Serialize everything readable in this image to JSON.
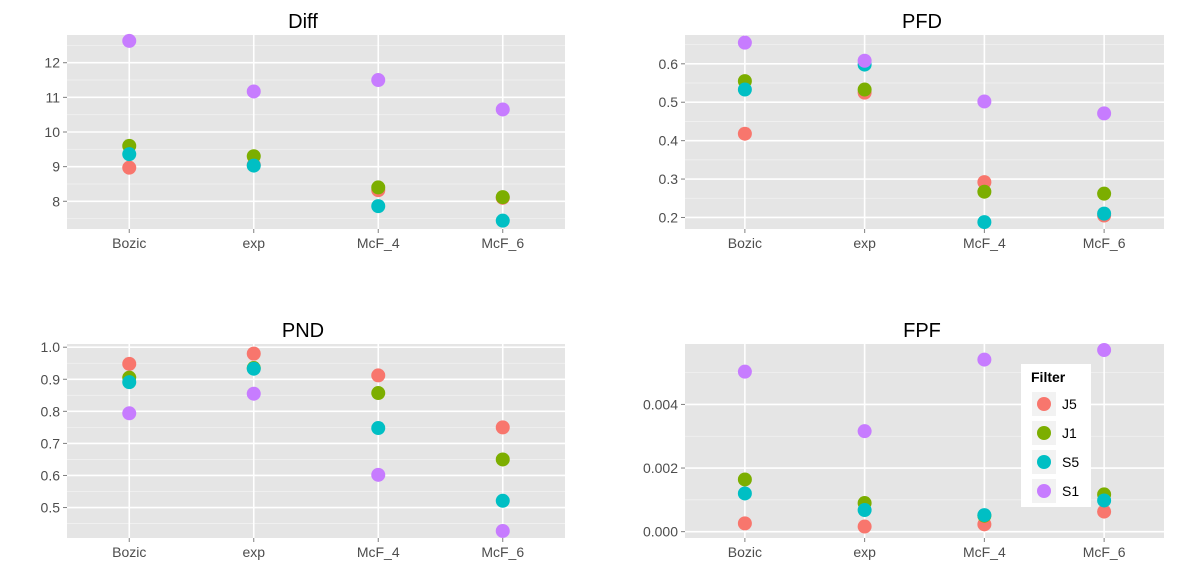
{
  "chart_data": [
    {
      "type": "scatter",
      "title": "Diff",
      "categories": [
        "Bozic",
        "exp",
        "McF_4",
        "McF_6"
      ],
      "ylim": [
        7.2,
        12.8
      ],
      "yticks": [
        8,
        9,
        10,
        11,
        12
      ],
      "ytick_labels": [
        "8",
        "9",
        "10",
        "11",
        "12"
      ],
      "grid": true,
      "series": [
        {
          "name": "J5",
          "values": [
            8.97,
            9.05,
            8.32,
            8.1
          ]
        },
        {
          "name": "J1",
          "values": [
            9.6,
            9.3,
            8.4,
            8.12
          ]
        },
        {
          "name": "S5",
          "values": [
            9.36,
            9.03,
            7.86,
            7.44
          ]
        },
        {
          "name": "S1",
          "values": [
            12.63,
            11.17,
            11.5,
            10.65
          ]
        }
      ]
    },
    {
      "type": "scatter",
      "title": "PFD",
      "categories": [
        "Bozic",
        "exp",
        "McF_4",
        "McF_6"
      ],
      "ylim": [
        0.17,
        0.675
      ],
      "yticks": [
        0.2,
        0.3,
        0.4,
        0.5,
        0.6
      ],
      "ytick_labels": [
        "0.2",
        "0.3",
        "0.4",
        "0.5",
        "0.6"
      ],
      "grid": true,
      "series": [
        {
          "name": "J5",
          "values": [
            0.418,
            0.525,
            0.292,
            0.205
          ]
        },
        {
          "name": "J1",
          "values": [
            0.555,
            0.533,
            0.267,
            0.262
          ]
        },
        {
          "name": "S5",
          "values": [
            0.533,
            0.598,
            0.188,
            0.21
          ]
        },
        {
          "name": "S1",
          "values": [
            0.655,
            0.608,
            0.502,
            0.471
          ]
        }
      ]
    },
    {
      "type": "scatter",
      "title": "PND",
      "categories": [
        "Bozic",
        "exp",
        "McF_4",
        "McF_6"
      ],
      "ylim": [
        0.405,
        1.01
      ],
      "yticks": [
        0.5,
        0.6,
        0.7,
        0.8,
        0.9,
        1.0
      ],
      "ytick_labels": [
        "0.5",
        "0.6",
        "0.7",
        "0.8",
        "0.9",
        "1.0"
      ],
      "grid": true,
      "series": [
        {
          "name": "J5",
          "values": [
            0.948,
            0.98,
            0.912,
            0.75
          ]
        },
        {
          "name": "J1",
          "values": [
            0.905,
            0.935,
            0.857,
            0.65
          ]
        },
        {
          "name": "S5",
          "values": [
            0.891,
            0.933,
            0.748,
            0.521
          ]
        },
        {
          "name": "S1",
          "values": [
            0.794,
            0.855,
            0.602,
            0.427
          ]
        }
      ]
    },
    {
      "type": "scatter",
      "title": "FPF",
      "categories": [
        "Bozic",
        "exp",
        "McF_4",
        "McF_6"
      ],
      "ylim": [
        -0.0002,
        0.0059
      ],
      "yticks": [
        0.0,
        0.002,
        0.004
      ],
      "ytick_labels": [
        "0.000",
        "0.002",
        "0.004"
      ],
      "grid": true,
      "series": [
        {
          "name": "J5",
          "values": [
            0.00026,
            0.00016,
            0.00023,
            0.00063
          ]
        },
        {
          "name": "J1",
          "values": [
            0.00164,
            0.0009,
            0.0005,
            0.00117
          ]
        },
        {
          "name": "S5",
          "values": [
            0.0012,
            0.00068,
            0.00052,
            0.00098
          ]
        },
        {
          "name": "S1",
          "values": [
            0.00503,
            0.00316,
            0.00541,
            0.00571
          ]
        }
      ]
    }
  ],
  "legend": {
    "title": "Filter",
    "placement": "inside-right",
    "items": [
      {
        "label": "J5",
        "color": "#F8766D"
      },
      {
        "label": "J1",
        "color": "#7CAE00"
      },
      {
        "label": "S5",
        "color": "#00BFC4"
      },
      {
        "label": "S1",
        "color": "#C77CFF"
      }
    ]
  },
  "colors": {
    "panel_background": "#E5E5E5",
    "grid_major": "#FFFFFF",
    "grid_minor": "#F2F2F2",
    "J5": "#F8766D",
    "J1": "#7CAE00",
    "S5": "#00BFC4",
    "S1": "#C77CFF"
  }
}
